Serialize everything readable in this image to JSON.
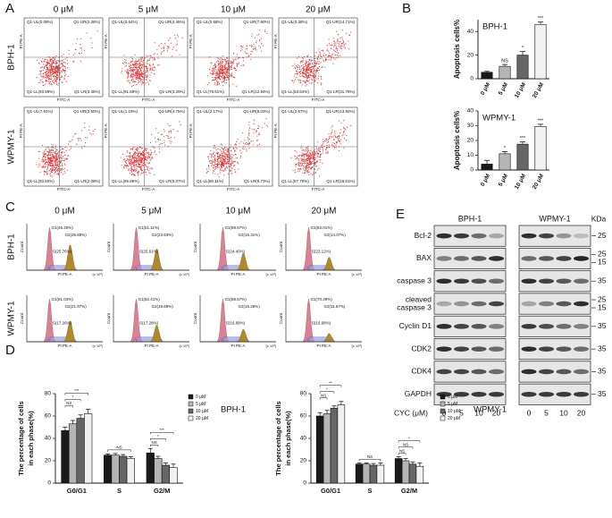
{
  "panels": {
    "A": {
      "label": "A",
      "columns": [
        "0 μM",
        "5 μM",
        "10 μM",
        "20 μM"
      ],
      "rows": [
        "BPH-1",
        "WPMY-1"
      ],
      "x_axis": "FITC-A",
      "y_axis": "PI PE-A",
      "quadrants": [
        [
          [
            "Q1-UL(0.08%)",
            "Q1-UR(2.36%)",
            "Q1-LL(93.59%)",
            "Q1-LR(3.45%)"
          ],
          [
            "Q1-UL(0.64%)",
            "Q1-UR(4.45%)",
            "Q1-LL(91.69%)",
            "Q1-LR(3.20%)"
          ],
          [
            "Q1-UL(0.68%)",
            "Q1-UR(7.90%)",
            "Q1-LL(78.51%)",
            "Q1-LR(12.94%)"
          ],
          [
            "Q1-UL(0.38%)",
            "Q1-UR(14.71%)",
            "Q1-LL(53.64%)",
            "Q1-LR(31.76%)"
          ]
        ],
        [
          [
            "Q1-UL(7.91%)",
            "Q1-UR(2.50%)",
            "Q1-LL(93.50%)",
            "Q1-LR(2.08%)"
          ],
          [
            "Q1-UL(1.19%)",
            "Q1-UR(4.75%)",
            "Q1-LL(85.86%)",
            "Q1-LR(8.07%)"
          ],
          [
            "Q1-UL(2.17%)",
            "Q1-UR(8.03%)",
            "Q1-LL(80.11%)",
            "Q1-LR(9.73%)"
          ],
          [
            "Q1-UL(2.67%)",
            "Q1-UR(13.92%)",
            "Q1-LL(67.70%)",
            "Q1-LR(16.01%)"
          ]
        ]
      ]
    },
    "B": {
      "label": "B"
    },
    "C": {
      "label": "C",
      "columns": [
        "0 μM",
        "5 μM",
        "10 μM",
        "20 μM"
      ],
      "rows": [
        "BPH-1",
        "WPMY-1"
      ],
      "x_axis": "PI PE-A",
      "y_axis": "Count",
      "x_unit": "(x 10³)",
      "phases": [
        [
          [
            "G1(46.40%)",
            "G2(26.88%)",
            "S(25.76%)"
          ],
          [
            "G1(51.11%)",
            "G2(23.63%)",
            "S(25.61%)"
          ],
          [
            "G1(59.67%)",
            "G2(16.31%)",
            "S(24.40%)"
          ],
          [
            "G1(63.01%)",
            "G2(14.07%)",
            "S(23.12%)"
          ]
        ],
        [
          [
            "G1(61.04%)",
            "G2(21.97%)",
            "S(17.26%)"
          ],
          [
            "G1(62.41%)",
            "G2(19.69%)",
            "S(17.28%)"
          ],
          [
            "G1(68.57%)",
            "G2(15.28%)",
            "S(16.89%)"
          ],
          [
            "G1(70.49%)",
            "G2(11.67%)",
            "S(16.98%)"
          ]
        ]
      ]
    },
    "D": {
      "label": "D"
    },
    "E": {
      "label": "E",
      "groups": [
        "BPH-1",
        "WPMY-1"
      ],
      "unit": "KDa",
      "treatment": "CYC (μM)",
      "lanes": [
        "0",
        "5",
        "10",
        "20"
      ],
      "proteins": [
        {
          "name": [
            "Bcl-2"
          ],
          "kda": [
            25
          ]
        },
        {
          "name": [
            "BAX"
          ],
          "kda": [
            25,
            15
          ]
        },
        {
          "name": [
            "caspase 3"
          ],
          "kda": [
            35
          ]
        },
        {
          "name": [
            "cleaved",
            "caspase 3"
          ],
          "kda": [
            25,
            15
          ]
        },
        {
          "name": [
            "Cyclin D1"
          ],
          "kda": [
            35
          ]
        },
        {
          "name": [
            "CDK2"
          ],
          "kda": [
            35
          ]
        },
        {
          "name": [
            "CDK4"
          ],
          "kda": [
            35
          ]
        },
        {
          "name": [
            "GAPDH"
          ],
          "kda": [
            35
          ]
        }
      ]
    }
  },
  "chart_data": [
    {
      "type": "bar",
      "title": "BPH-1",
      "ylabel": "Apoptosis cells%",
      "categories": [
        "0 μM",
        "5 μM",
        "10 μM",
        "20 μM"
      ],
      "values": [
        5.5,
        10.5,
        20,
        46
      ],
      "errors": [
        0.8,
        1.5,
        3,
        2
      ],
      "colors": [
        "#1a1a1a",
        "#b5b5b5",
        "#666666",
        "#f2f2f2"
      ],
      "significance": [
        null,
        "NS",
        "*",
        "***"
      ],
      "ylim": [
        0,
        50
      ],
      "yticks": [
        0,
        20,
        40
      ]
    },
    {
      "type": "bar",
      "title": "WPMY-1",
      "ylabel": "Apoptosis cells%",
      "categories": [
        "0 μM",
        "5 μM",
        "10 μM",
        "20 μM"
      ],
      "values": [
        4,
        11,
        17.5,
        29.5
      ],
      "errors": [
        2.5,
        1.5,
        1.5,
        1.5
      ],
      "colors": [
        "#1a1a1a",
        "#b5b5b5",
        "#666666",
        "#f2f2f2"
      ],
      "significance": [
        null,
        "*",
        "***",
        "***"
      ],
      "ylim": [
        0,
        40
      ],
      "yticks": [
        0,
        10,
        20,
        30,
        40
      ]
    },
    {
      "type": "grouped_bar",
      "title": "BPH-1",
      "ylabel": [
        "The percentage of cells",
        "in each phase(%)"
      ],
      "categories": [
        "G0/G1",
        "S",
        "G2/M"
      ],
      "series": [
        {
          "name": "0 μM",
          "color": "#1a1a1a",
          "values": [
            47,
            25,
            27
          ],
          "errors": [
            3,
            1,
            4
          ]
        },
        {
          "name": "5 μM",
          "color": "#b5b5b5",
          "values": [
            53,
            25,
            22
          ],
          "errors": [
            3,
            1.5,
            2
          ]
        },
        {
          "name": "10 μM",
          "color": "#666666",
          "values": [
            58,
            24,
            16
          ],
          "errors": [
            3,
            1.5,
            2
          ]
        },
        {
          "name": "20 μM",
          "color": "#f2f2f2",
          "values": [
            62,
            22,
            14
          ],
          "errors": [
            4,
            1.5,
            3
          ]
        }
      ],
      "significance": [
        [
          "NS",
          "*",
          "***"
        ],
        [
          "NS"
        ],
        [
          "NS",
          "*",
          "***"
        ]
      ],
      "ylim": [
        0,
        80
      ],
      "yticks": [
        0,
        20,
        40,
        60,
        80
      ]
    },
    {
      "type": "grouped_bar",
      "title": "WPMY-1",
      "ylabel": [
        "The percentage of cells",
        "in each phase(%)"
      ],
      "categories": [
        "G0/G1",
        "S",
        "G2/M"
      ],
      "series": [
        {
          "name": "0 μM",
          "color": "#1a1a1a",
          "values": [
            60,
            17,
            22
          ],
          "errors": [
            3,
            1,
            1.5
          ]
        },
        {
          "name": "5 μM",
          "color": "#b5b5b5",
          "values": [
            62,
            17,
            20
          ],
          "errors": [
            3,
            1,
            2
          ]
        },
        {
          "name": "10 μM",
          "color": "#666666",
          "values": [
            67,
            16,
            17
          ],
          "errors": [
            2,
            1.5,
            2
          ]
        },
        {
          "name": "20 μM",
          "color": "#f2f2f2",
          "values": [
            70,
            16,
            15
          ],
          "errors": [
            3,
            2,
            3
          ]
        }
      ],
      "significance": [
        [
          "NS",
          "*",
          "**"
        ],
        [
          "NS"
        ],
        [
          "NS",
          "NS",
          "*"
        ]
      ],
      "ylim": [
        0,
        80
      ],
      "yticks": [
        0,
        20,
        40,
        60,
        80
      ]
    }
  ]
}
